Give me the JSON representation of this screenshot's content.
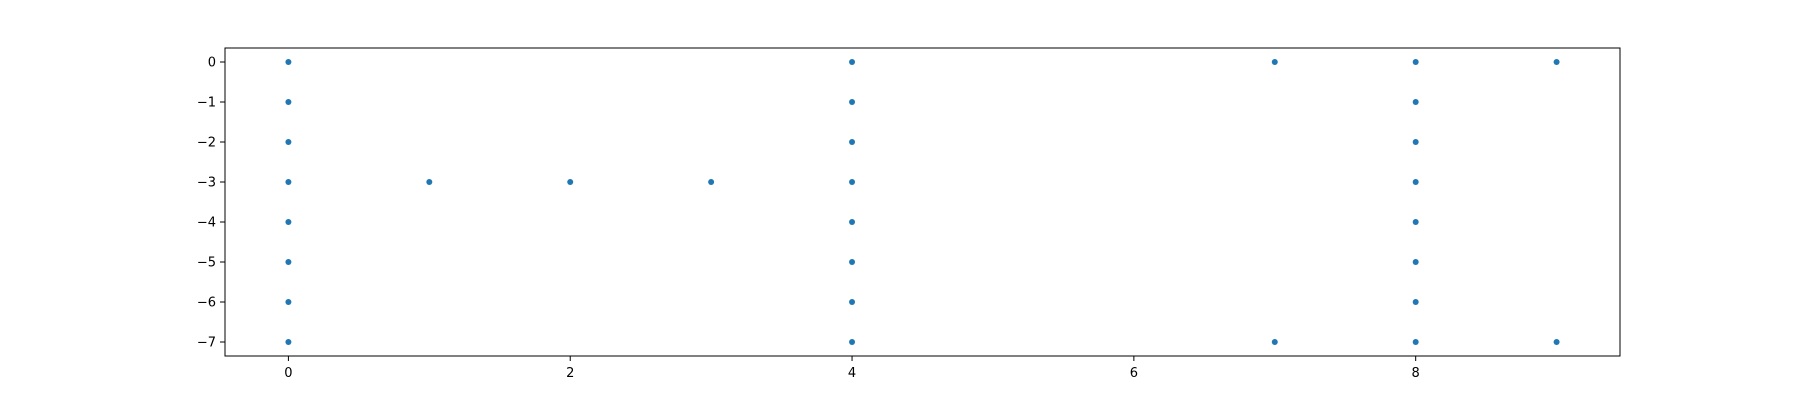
{
  "chart_data": {
    "type": "scatter",
    "title": "",
    "xlabel": "",
    "ylabel": "",
    "xlim": [
      -0.45,
      9.45
    ],
    "ylim": [
      -7.35,
      0.35
    ],
    "x_ticks": [
      0,
      2,
      4,
      6,
      8
    ],
    "x_tick_labels": [
      "0",
      "2",
      "4",
      "6",
      "8"
    ],
    "y_ticks": [
      0,
      -1,
      -2,
      -3,
      -4,
      -5,
      -6,
      -7
    ],
    "y_tick_labels": [
      "0",
      "−1",
      "−2",
      "−3",
      "−4",
      "−5",
      "−6",
      "−7"
    ],
    "grid": false,
    "series": [
      {
        "color": "#1f77b4",
        "points": [
          [
            0,
            0
          ],
          [
            0,
            -1
          ],
          [
            0,
            -2
          ],
          [
            0,
            -3
          ],
          [
            0,
            -4
          ],
          [
            0,
            -5
          ],
          [
            0,
            -6
          ],
          [
            0,
            -7
          ],
          [
            1,
            -3
          ],
          [
            2,
            -3
          ],
          [
            3,
            -3
          ],
          [
            4,
            0
          ],
          [
            4,
            -1
          ],
          [
            4,
            -2
          ],
          [
            4,
            -3
          ],
          [
            4,
            -4
          ],
          [
            4,
            -5
          ],
          [
            4,
            -6
          ],
          [
            4,
            -7
          ],
          [
            7,
            0
          ],
          [
            7,
            -7
          ],
          [
            8,
            0
          ],
          [
            8,
            -1
          ],
          [
            8,
            -2
          ],
          [
            8,
            -3
          ],
          [
            8,
            -4
          ],
          [
            8,
            -5
          ],
          [
            8,
            -6
          ],
          [
            8,
            -7
          ],
          [
            9,
            0
          ],
          [
            9,
            -7
          ]
        ]
      }
    ]
  }
}
